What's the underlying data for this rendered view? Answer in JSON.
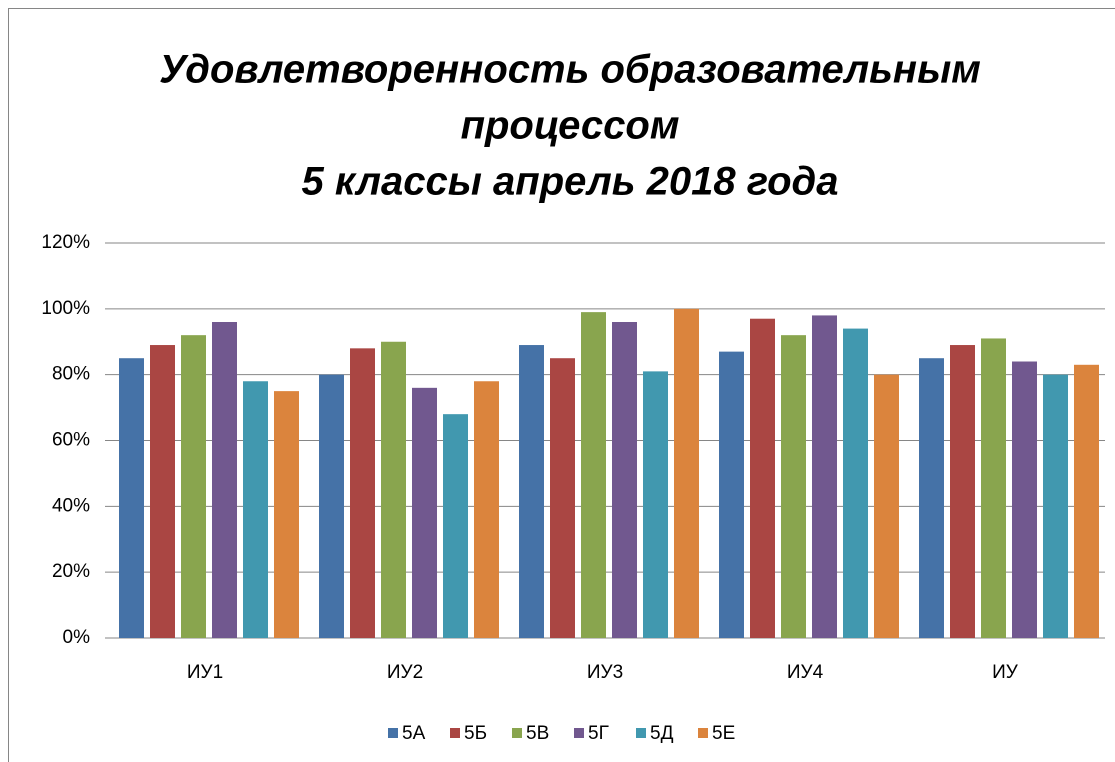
{
  "chart_data": {
    "type": "bar",
    "title": [
      "Удовлетворенность образовательным",
      "процессом",
      "5 классы апрель 2018 года"
    ],
    "categories": [
      "ИУ1",
      "ИУ2",
      "ИУ3",
      "ИУ4",
      "ИУ"
    ],
    "series": [
      {
        "name": "5А",
        "color": "#4572a7",
        "values": [
          85,
          80,
          89,
          87,
          85
        ]
      },
      {
        "name": "5Б",
        "color": "#aa4643",
        "values": [
          89,
          88,
          85,
          97,
          89
        ]
      },
      {
        "name": "5В",
        "color": "#89a54e",
        "values": [
          92,
          90,
          99,
          92,
          91
        ]
      },
      {
        "name": "5Г",
        "color": "#71588f",
        "values": [
          96,
          76,
          96,
          98,
          84
        ]
      },
      {
        "name": "5Д",
        "color": "#4198af",
        "values": [
          78,
          68,
          81,
          94,
          80
        ]
      },
      {
        "name": "5Е",
        "color": "#db843d",
        "values": [
          75,
          78,
          100,
          80,
          83
        ]
      }
    ],
    "ylim": [
      0,
      120
    ],
    "yticks": [
      {
        "value": 0,
        "label": "0%"
      },
      {
        "value": 20,
        "label": "20%"
      },
      {
        "value": 40,
        "label": "40%"
      },
      {
        "value": 60,
        "label": "60%"
      },
      {
        "value": 80,
        "label": "80%"
      },
      {
        "value": 100,
        "label": "100%"
      },
      {
        "value": 120,
        "label": "120%"
      }
    ],
    "grid": true,
    "legend": "bottom"
  }
}
